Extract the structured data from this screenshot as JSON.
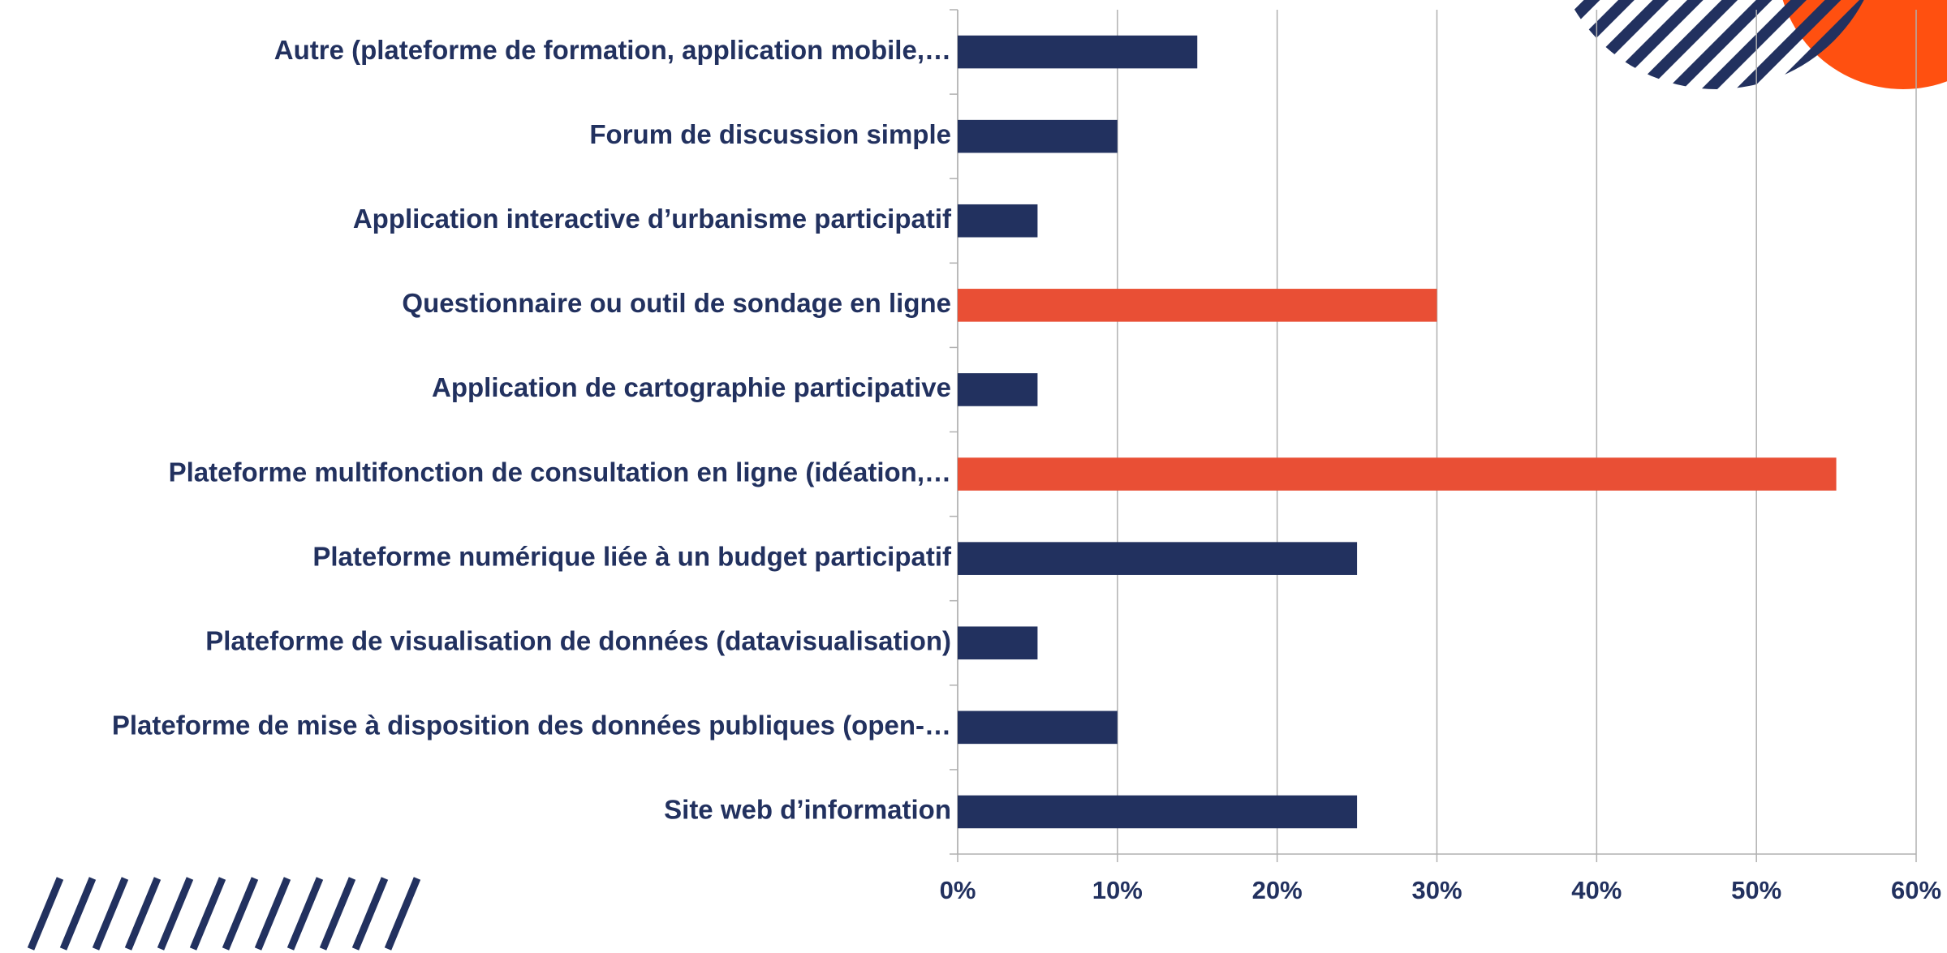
{
  "chart_data": {
    "type": "bar",
    "orientation": "horizontal",
    "categories": [
      "Autre (plateforme de formation, application mobile,…",
      "Forum de discussion simple",
      "Application interactive d’urbanisme participatif",
      "Questionnaire ou outil de sondage en ligne",
      "Application de cartographie participative",
      "Plateforme multifonction de consultation en ligne (idéation,…",
      "Plateforme numérique liée à un budget participatif",
      "Plateforme de visualisation de données (datavisualisation)",
      "Plateforme de mise à disposition des données publiques (open-…",
      "Site web d’information"
    ],
    "values": [
      15,
      10,
      5,
      30,
      5,
      55,
      25,
      5,
      10,
      25
    ],
    "colors": [
      "#22315f",
      "#22315f",
      "#22315f",
      "#e94f35",
      "#22315f",
      "#e94f35",
      "#22315f",
      "#22315f",
      "#22315f",
      "#22315f"
    ],
    "xlim": [
      0,
      60
    ],
    "xticks": [
      {
        "value": 0,
        "label": "0%"
      },
      {
        "value": 10,
        "label": "10%"
      },
      {
        "value": 20,
        "label": "20%"
      },
      {
        "value": 30,
        "label": "30%"
      },
      {
        "value": 40,
        "label": "40%"
      },
      {
        "value": 50,
        "label": "50%"
      },
      {
        "value": 60,
        "label": "60%"
      }
    ],
    "grid": true
  }
}
